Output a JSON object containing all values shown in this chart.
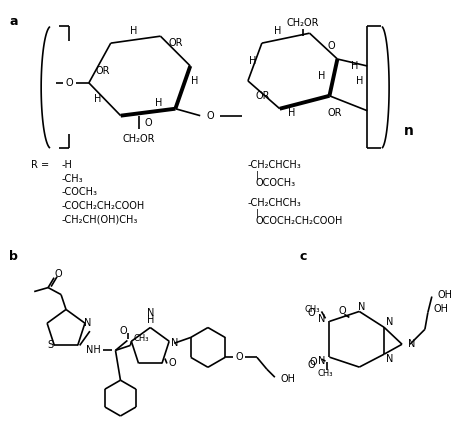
{
  "bg_color": "#ffffff",
  "fig_width": 4.74,
  "fig_height": 4.46,
  "label_a": "a",
  "label_b": "b",
  "label_c": "c",
  "label_n": "n",
  "R_left": [
    "-H",
    "-CH₃",
    "-COCH₃",
    "-COCH₂CH₂COOH",
    "-CH₂CH(OH)CH₃"
  ],
  "R_right_1a": "-CH₂CHCH₃",
  "R_right_1b": "OCOCH₃",
  "R_right_2a": "-CH₂CHCH₃",
  "R_right_2b": "OCOCH₂CH₂COOH"
}
